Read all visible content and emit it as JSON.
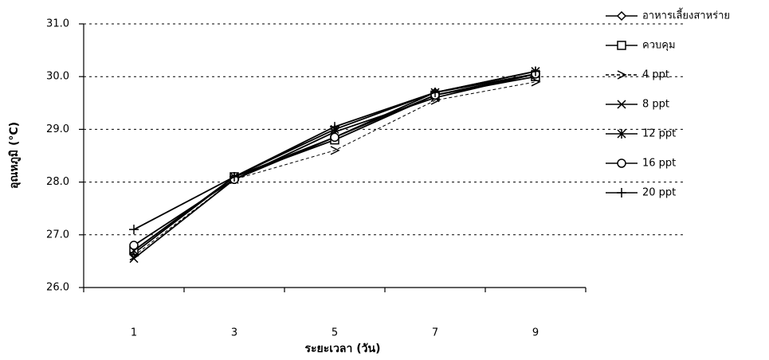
{
  "chart_data": {
    "type": "line",
    "x_label": "ระยะเวลา (วัน)",
    "y_label": "อุณหภูมิ (°C)",
    "categories": [
      "1",
      "3",
      "5",
      "7",
      "9"
    ],
    "ylim": [
      26,
      31
    ],
    "yticks": [
      {
        "value": 26,
        "label": "26.0"
      },
      {
        "value": 27,
        "label": "27.0"
      },
      {
        "value": 28,
        "label": "28.0"
      },
      {
        "value": 29,
        "label": "29.0"
      },
      {
        "value": 30,
        "label": "30.0"
      },
      {
        "value": 31,
        "label": "31.0"
      }
    ],
    "grid": true,
    "legend": "right",
    "series": [
      {
        "name": "อาหารเลี้ยงสาหร่าย",
        "color": "#000000",
        "marker": "diamond",
        "line_style": "solid",
        "values": [
          26.65,
          28.1,
          28.85,
          29.7,
          30.05
        ]
      },
      {
        "name": "ควบคุม",
        "color": "#000000",
        "marker": "square",
        "line_style": "solid",
        "values": [
          26.7,
          28.1,
          28.8,
          29.65,
          30.0
        ]
      },
      {
        "name": "4 ppt",
        "color": "#000000",
        "marker": "arrow",
        "line_style": "dashed",
        "values": [
          26.6,
          28.05,
          28.6,
          29.55,
          29.9
        ]
      },
      {
        "name": "8 ppt",
        "color": "#000000",
        "marker": "x",
        "line_style": "solid",
        "values": [
          26.55,
          28.05,
          28.95,
          29.6,
          30.05
        ]
      },
      {
        "name": "12 ppt",
        "color": "#000000",
        "marker": "star",
        "line_style": "solid",
        "values": [
          26.7,
          28.1,
          29.0,
          29.7,
          30.1
        ]
      },
      {
        "name": "16 ppt",
        "color": "#000000",
        "marker": "circle",
        "line_style": "solid",
        "values": [
          26.8,
          28.05,
          28.85,
          29.65,
          30.05
        ]
      },
      {
        "name": "20 ppt",
        "color": "#000000",
        "marker": "plus",
        "line_style": "solid",
        "values": [
          27.1,
          28.1,
          29.05,
          29.7,
          30.1
        ]
      }
    ]
  }
}
